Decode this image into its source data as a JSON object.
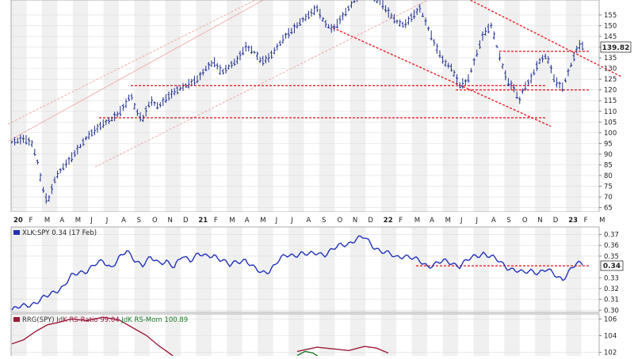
{
  "colors": {
    "bar": "#1f2f8f",
    "line": "#2233bb",
    "red": "#e8222a",
    "pink": "#f2a0a0",
    "ratio": "#9b1b3a",
    "mom": "#1a7a2a",
    "shadeA": "#f0f0f0",
    "shadeB": "#ffffff"
  },
  "chart_data": [
    {
      "type": "bar",
      "name": "price",
      "ylim": [
        63,
        162
      ],
      "yticks": [
        "155",
        "150",
        "145",
        "140",
        "135",
        "130",
        "125",
        "120",
        "115",
        "110",
        "105",
        "100",
        "95",
        "90",
        "85",
        "80",
        "75",
        "70",
        "65"
      ],
      "last_value_label": "139.82",
      "last_value": 139.82,
      "x_labels": [
        "20",
        "F",
        "M",
        "A",
        "M",
        "J",
        "J",
        "A",
        "S",
        "O",
        "N",
        "D",
        "21",
        "F",
        "M",
        "A",
        "M",
        "J",
        "J",
        "A",
        "S",
        "O",
        "N",
        "D",
        "22",
        "F",
        "M",
        "A",
        "M",
        "J",
        "J",
        "A",
        "S",
        "O",
        "N",
        "D",
        "23",
        "F",
        "M"
      ],
      "anchors": [
        [
          0,
          91
        ],
        [
          10,
          95
        ],
        [
          20,
          96
        ],
        [
          30,
          97
        ],
        [
          40,
          95
        ],
        [
          47,
          87
        ],
        [
          53,
          75
        ],
        [
          60,
          67
        ],
        [
          65,
          73
        ],
        [
          70,
          79
        ],
        [
          80,
          84
        ],
        [
          90,
          88
        ],
        [
          100,
          93
        ],
        [
          110,
          98
        ],
        [
          120,
          101
        ],
        [
          130,
          104
        ],
        [
          140,
          106
        ],
        [
          150,
          109
        ],
        [
          160,
          114
        ],
        [
          165,
          118
        ],
        [
          170,
          112
        ],
        [
          175,
          108
        ],
        [
          180,
          106
        ],
        [
          190,
          115
        ],
        [
          200,
          112
        ],
        [
          210,
          116
        ],
        [
          220,
          119
        ],
        [
          230,
          121
        ],
        [
          240,
          123
        ],
        [
          250,
          125
        ],
        [
          260,
          130
        ],
        [
          270,
          133
        ],
        [
          280,
          128
        ],
        [
          290,
          131
        ],
        [
          300,
          134
        ],
        [
          310,
          140
        ],
        [
          320,
          138
        ],
        [
          330,
          133
        ],
        [
          340,
          135
        ],
        [
          350,
          140
        ],
        [
          360,
          145
        ],
        [
          370,
          148
        ],
        [
          380,
          152
        ],
        [
          390,
          155
        ],
        [
          400,
          158
        ],
        [
          410,
          151
        ],
        [
          420,
          148
        ],
        [
          430,
          153
        ],
        [
          440,
          158
        ],
        [
          450,
          163
        ],
        [
          460,
          165
        ],
        [
          470,
          163
        ],
        [
          480,
          161
        ],
        [
          490,
          156
        ],
        [
          500,
          152
        ],
        [
          510,
          150
        ],
        [
          520,
          154
        ],
        [
          530,
          158
        ],
        [
          540,
          149
        ],
        [
          550,
          140
        ],
        [
          560,
          133
        ],
        [
          570,
          130
        ],
        [
          580,
          122
        ],
        [
          590,
          124
        ],
        [
          600,
          135
        ],
        [
          610,
          146
        ],
        [
          620,
          150
        ],
        [
          630,
          136
        ],
        [
          640,
          124
        ],
        [
          650,
          120
        ],
        [
          655,
          114
        ],
        [
          660,
          120
        ],
        [
          670,
          125
        ],
        [
          680,
          133
        ],
        [
          690,
          136
        ],
        [
          700,
          124
        ],
        [
          710,
          121
        ],
        [
          720,
          131
        ],
        [
          730,
          141
        ],
        [
          737,
          140
        ]
      ],
      "lines": [
        {
          "kind": "solid",
          "p1": [
            10,
            96
          ],
          "p2": [
            430,
            182
          ]
        },
        {
          "kind": "pinkdash",
          "p1": [
            10,
            104
          ],
          "p2": [
            430,
            182
          ]
        },
        {
          "kind": "pinkdash",
          "p1": [
            120,
            84
          ],
          "p2": [
            540,
            162
          ]
        },
        {
          "kind": "reddash",
          "p1": [
            420,
            149
          ],
          "p2": [
            695,
            103
          ]
        },
        {
          "kind": "reddash",
          "p1": [
            540,
            172
          ],
          "p2": [
            785,
            126
          ]
        },
        {
          "kind": "reddash",
          "p1": [
            165,
            122
          ],
          "p2": [
            690,
            122
          ]
        },
        {
          "kind": "reddash",
          "p1": [
            125,
            107
          ],
          "p2": [
            690,
            107
          ]
        },
        {
          "kind": "reddash",
          "p1": [
            575,
            120
          ],
          "p2": [
            745,
            120
          ]
        },
        {
          "kind": "reddash",
          "p1": [
            630,
            138
          ],
          "p2": [
            745,
            138
          ]
        }
      ]
    },
    {
      "type": "line",
      "name": "relative-strength",
      "title": "XLK:SPY 0.34 (17 Feb)",
      "ylim": [
        0.298,
        0.377
      ],
      "yticks": [
        "0.37",
        "0.36",
        "0.35",
        "0.33",
        "0.32",
        "0.31",
        "0.30"
      ],
      "last_value_label": "0.34",
      "last_value": 0.34,
      "anchors": [
        [
          15,
          0.3
        ],
        [
          30,
          0.304
        ],
        [
          45,
          0.307
        ],
        [
          60,
          0.313
        ],
        [
          70,
          0.318
        ],
        [
          80,
          0.322
        ],
        [
          90,
          0.331
        ],
        [
          100,
          0.335
        ],
        [
          110,
          0.337
        ],
        [
          120,
          0.342
        ],
        [
          130,
          0.345
        ],
        [
          140,
          0.34
        ],
        [
          150,
          0.348
        ],
        [
          160,
          0.354
        ],
        [
          170,
          0.347
        ],
        [
          180,
          0.342
        ],
        [
          190,
          0.348
        ],
        [
          200,
          0.344
        ],
        [
          210,
          0.346
        ],
        [
          220,
          0.339
        ],
        [
          230,
          0.35
        ],
        [
          240,
          0.347
        ],
        [
          250,
          0.352
        ],
        [
          260,
          0.349
        ],
        [
          270,
          0.351
        ],
        [
          280,
          0.347
        ],
        [
          290,
          0.341
        ],
        [
          300,
          0.345
        ],
        [
          310,
          0.347
        ],
        [
          320,
          0.339
        ],
        [
          330,
          0.334
        ],
        [
          340,
          0.337
        ],
        [
          350,
          0.345
        ],
        [
          360,
          0.35
        ],
        [
          370,
          0.351
        ],
        [
          380,
          0.353
        ],
        [
          390,
          0.351
        ],
        [
          400,
          0.353
        ],
        [
          410,
          0.352
        ],
        [
          420,
          0.356
        ],
        [
          430,
          0.36
        ],
        [
          440,
          0.362
        ],
        [
          450,
          0.366
        ],
        [
          460,
          0.367
        ],
        [
          470,
          0.36
        ],
        [
          480,
          0.355
        ],
        [
          490,
          0.352
        ],
        [
          500,
          0.349
        ],
        [
          510,
          0.351
        ],
        [
          520,
          0.348
        ],
        [
          530,
          0.345
        ],
        [
          540,
          0.341
        ],
        [
          550,
          0.343
        ],
        [
          560,
          0.345
        ],
        [
          570,
          0.344
        ],
        [
          580,
          0.341
        ],
        [
          590,
          0.346
        ],
        [
          600,
          0.35
        ],
        [
          610,
          0.353
        ],
        [
          620,
          0.349
        ],
        [
          630,
          0.345
        ],
        [
          640,
          0.34
        ],
        [
          650,
          0.337
        ],
        [
          660,
          0.334
        ],
        [
          670,
          0.337
        ],
        [
          680,
          0.335
        ],
        [
          690,
          0.337
        ],
        [
          700,
          0.333
        ],
        [
          710,
          0.329
        ],
        [
          720,
          0.337
        ],
        [
          728,
          0.343
        ],
        [
          737,
          0.343
        ]
      ],
      "lines": [
        {
          "kind": "reddash",
          "p1": [
            525,
            0.341
          ],
          "p2": [
            745,
            0.341
          ]
        }
      ]
    },
    {
      "type": "line",
      "name": "rrg",
      "title": "RRG(SPY) JdK RS-Ratio 99.04 JdK RS-Mom 100.89",
      "title_parts": [
        {
          "text": "RRG(SPY)",
          "color": "#333333"
        },
        {
          "text": " JdK RS-Ratio 99.04",
          "color": "#9b1b3a"
        },
        {
          "text": " JdK RS-Mom 100.89",
          "color": "#1a7a2a"
        }
      ],
      "ylim": [
        100.9,
        106.6
      ],
      "yticks": [
        "106",
        "104",
        "102"
      ],
      "series": [
        {
          "name": "JdK RS-Ratio",
          "points": [
            [
              15,
              103.0
            ],
            [
              30,
              103.5
            ],
            [
              45,
              104.5
            ],
            [
              60,
              105.3
            ],
            [
              75,
              105.6
            ],
            [
              90,
              106.0
            ],
            [
              110,
              105.8
            ],
            [
              130,
              106.2
            ],
            [
              150,
              105.9
            ],
            [
              170,
              104.8
            ],
            [
              185,
              104.0
            ],
            [
              200,
              102.8
            ],
            [
              215,
              101.8
            ],
            [
              225,
              101.0
            ]
          ]
        },
        {
          "name": "JdK RS-Mom",
          "points": [
            [
              375,
              101.6
            ],
            [
              385,
              102.1
            ],
            [
              395,
              101.9
            ],
            [
              405,
              101.3
            ]
          ]
        },
        {
          "name": "JdK RS-Ratio",
          "points": [
            [
              375,
              102.1
            ],
            [
              400,
              102.6
            ],
            [
              420,
              102.4
            ],
            [
              440,
              102.2
            ],
            [
              460,
              102.7
            ],
            [
              475,
              102.5
            ],
            [
              490,
              101.9
            ]
          ]
        }
      ]
    }
  ]
}
